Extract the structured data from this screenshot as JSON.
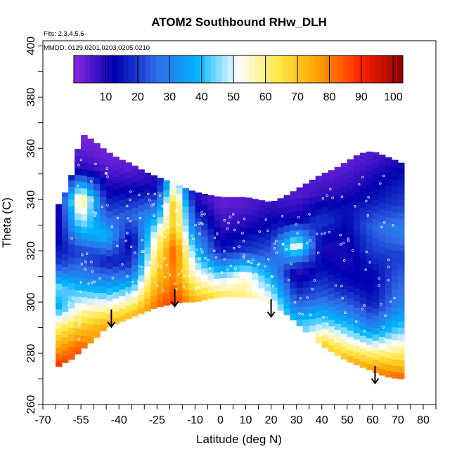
{
  "chart_data": {
    "type": "heatmap",
    "title": "ATOM2 Southbound RHw_DLH",
    "notes": [
      "Flts: 2,3,4,5,6",
      "MMDD: 0129,0201,0203,0205,0210"
    ],
    "xlabel": "Latitude (deg N)",
    "ylabel": "Theta (C)",
    "xlim": [
      -70,
      85
    ],
    "ylim": [
      260,
      402
    ],
    "x_tick_labels": [
      "-70",
      "-55",
      "-40",
      "-25",
      "-10",
      "0",
      "10",
      "20",
      "30",
      "40",
      "50",
      "60",
      "70",
      "80"
    ],
    "y_tick_labels": [
      "260",
      "280",
      "300",
      "320",
      "340",
      "360",
      "380",
      "400"
    ],
    "colorbar": {
      "range": [
        0,
        103
      ],
      "tick_labels": [
        "10",
        "20",
        "30",
        "40",
        "50",
        "60",
        "70",
        "80",
        "90",
        "100"
      ],
      "colors": [
        "#8a2be2",
        "#0000b0",
        "#2f6be8",
        "#00b4ff",
        "#ffffff",
        "#ffe840",
        "#ff9a00",
        "#ff2000",
        "#8b0000"
      ]
    },
    "arrows": [
      {
        "lat": -43,
        "theta": 290
      },
      {
        "lat": -18,
        "theta": 298
      },
      {
        "lat": 20,
        "theta": 294
      },
      {
        "lat": 61,
        "theta": 268
      }
    ],
    "surface": {
      "lat": [
        -65,
        -62,
        -58,
        -55,
        -50,
        -45,
        -40,
        -35,
        -30,
        -25,
        -20,
        -15,
        -10,
        -5,
        0,
        5,
        10,
        15,
        20,
        25,
        30,
        35,
        40,
        45,
        50,
        55,
        60,
        65,
        70,
        72
      ],
      "theta": [
        274,
        276,
        278,
        281,
        285,
        290,
        292,
        294,
        296,
        298,
        299,
        300,
        300,
        301,
        302,
        302,
        302,
        301,
        299,
        296,
        292,
        287,
        283,
        280,
        277,
        275,
        273,
        271,
        270,
        270
      ]
    },
    "top": {
      "lat": [
        -65,
        -60,
        -57,
        -55,
        -50,
        -45,
        -40,
        -35,
        -30,
        -25,
        -20,
        -15,
        -10,
        -5,
        0,
        5,
        10,
        15,
        20,
        25,
        30,
        35,
        40,
        45,
        50,
        55,
        60,
        65,
        70,
        72
      ],
      "theta": [
        336,
        345,
        356,
        366,
        363,
        359,
        356,
        354,
        351,
        349,
        347,
        345,
        343,
        342,
        341,
        341,
        341,
        340,
        339,
        341,
        344,
        347,
        350,
        352,
        355,
        358,
        359,
        357,
        355,
        354
      ]
    },
    "rh_bands": [
      {
        "lat": -65,
        "theta": [
          275,
          282,
          290,
          298,
          306,
          315,
          325,
          335
        ],
        "rh": [
          90,
          75,
          60,
          35,
          45,
          20,
          10,
          5
        ]
      },
      {
        "lat": -55,
        "theta": [
          282,
          290,
          300,
          310,
          320,
          330,
          340,
          352,
          362
        ],
        "rh": [
          85,
          70,
          50,
          30,
          20,
          45,
          65,
          10,
          2
        ]
      },
      {
        "lat": -45,
        "theta": [
          291,
          298,
          306,
          316,
          326,
          336,
          346,
          356
        ],
        "rh": [
          75,
          55,
          35,
          15,
          40,
          20,
          10,
          3
        ]
      },
      {
        "lat": -35,
        "theta": [
          295,
          304,
          314,
          324,
          334,
          344,
          352
        ],
        "rh": [
          72,
          45,
          20,
          10,
          25,
          12,
          4
        ]
      },
      {
        "lat": -25,
        "theta": [
          299,
          306,
          316,
          326,
          336,
          346
        ],
        "rh": [
          82,
          75,
          65,
          55,
          30,
          10
        ]
      },
      {
        "lat": -18,
        "theta": [
          300,
          310,
          320,
          330,
          338,
          345
        ],
        "rh": [
          88,
          80,
          85,
          70,
          72,
          55
        ]
      },
      {
        "lat": -10,
        "theta": [
          301,
          310,
          320,
          330,
          340
        ],
        "rh": [
          72,
          55,
          40,
          25,
          10
        ]
      },
      {
        "lat": 0,
        "theta": [
          302,
          310,
          320,
          330,
          338
        ],
        "rh": [
          65,
          45,
          15,
          8,
          4
        ]
      },
      {
        "lat": 10,
        "theta": [
          302,
          310,
          320,
          330,
          338
        ],
        "rh": [
          60,
          55,
          20,
          10,
          5
        ]
      },
      {
        "lat": 20,
        "theta": [
          299,
          308,
          318,
          328,
          338
        ],
        "rh": [
          55,
          40,
          25,
          15,
          8
        ]
      },
      {
        "lat": 30,
        "theta": [
          292,
          302,
          312,
          322,
          332,
          342
        ],
        "rh": [
          40,
          20,
          8,
          55,
          12,
          5
        ]
      },
      {
        "lat": 40,
        "theta": [
          283,
          292,
          302,
          312,
          322,
          332,
          342,
          350
        ],
        "rh": [
          70,
          45,
          25,
          15,
          10,
          20,
          8,
          4
        ]
      },
      {
        "lat": 50,
        "theta": [
          277,
          286,
          296,
          306,
          316,
          326,
          336,
          346,
          354
        ],
        "rh": [
          75,
          50,
          30,
          15,
          10,
          12,
          15,
          8,
          4
        ]
      },
      {
        "lat": 60,
        "theta": [
          273,
          280,
          290,
          300,
          310,
          320,
          330,
          340,
          350,
          358
        ],
        "rh": [
          80,
          60,
          30,
          15,
          12,
          20,
          25,
          15,
          10,
          5
        ]
      },
      {
        "lat": 70,
        "theta": [
          270,
          278,
          288,
          298,
          308,
          318,
          328,
          338,
          348,
          355
        ],
        "rh": [
          85,
          65,
          45,
          30,
          25,
          20,
          30,
          20,
          15,
          10
        ]
      }
    ]
  }
}
